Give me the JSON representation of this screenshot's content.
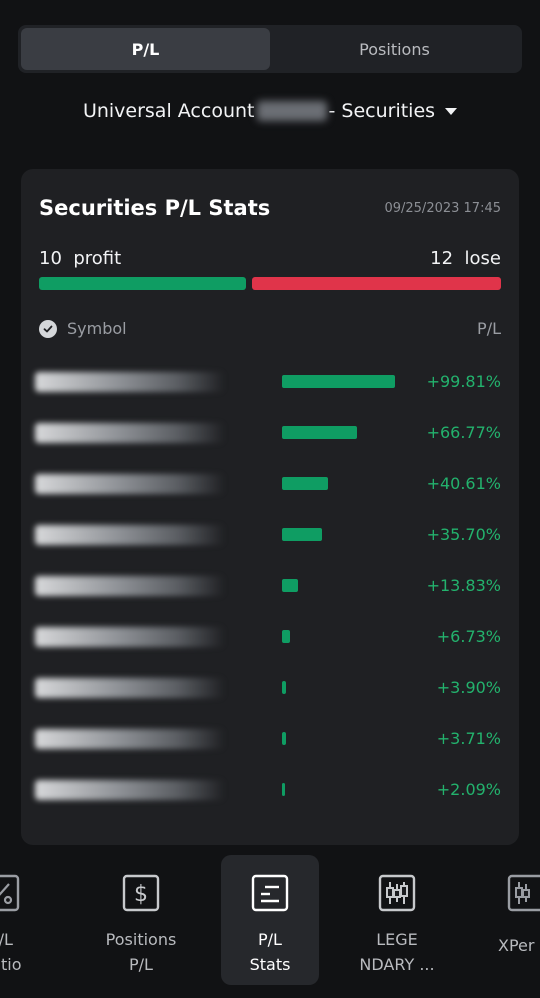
{
  "tabs": [
    {
      "label": "P/L",
      "active": true
    },
    {
      "label": "Positions",
      "active": false
    }
  ],
  "account": {
    "prefix": "Universal Account",
    "suffix": "- Securities"
  },
  "stats": {
    "title": "Securities P/L Stats",
    "timestamp": "09/25/2023 17:45",
    "profit_count": "10",
    "profit_label": "profit",
    "lose_count": "12",
    "lose_label": "lose",
    "profit_fraction": 0.455,
    "colors": {
      "profit": "#0f9d63",
      "lose": "#e0344a"
    },
    "col_symbol": "Symbol",
    "col_pl": "P/L",
    "rows": [
      {
        "pl": "+99.81%",
        "ratio": 0.9981
      },
      {
        "pl": "+66.77%",
        "ratio": 0.6677
      },
      {
        "pl": "+40.61%",
        "ratio": 0.4061
      },
      {
        "pl": "+35.70%",
        "ratio": 0.357
      },
      {
        "pl": "+13.83%",
        "ratio": 0.1383
      },
      {
        "pl": "+6.73%",
        "ratio": 0.0673
      },
      {
        "pl": "+3.90%",
        "ratio": 0.039
      },
      {
        "pl": "+3.71%",
        "ratio": 0.0371
      },
      {
        "pl": "+2.09%",
        "ratio": 0.0209
      }
    ]
  },
  "nav": [
    {
      "line1": "P/L",
      "line2": "Ratio",
      "icon": "percent-icon"
    },
    {
      "line1": "Positions",
      "line2": "P/L",
      "icon": "dollar-icon"
    },
    {
      "line1": "P/L",
      "line2": "Stats",
      "icon": "stats-icon",
      "active": true
    },
    {
      "line1": "LEGE",
      "line2": "NDARY ...",
      "icon": "candlestick-icon"
    },
    {
      "line1": "XPer",
      "line2": "",
      "icon": "candlestick-icon"
    }
  ]
}
